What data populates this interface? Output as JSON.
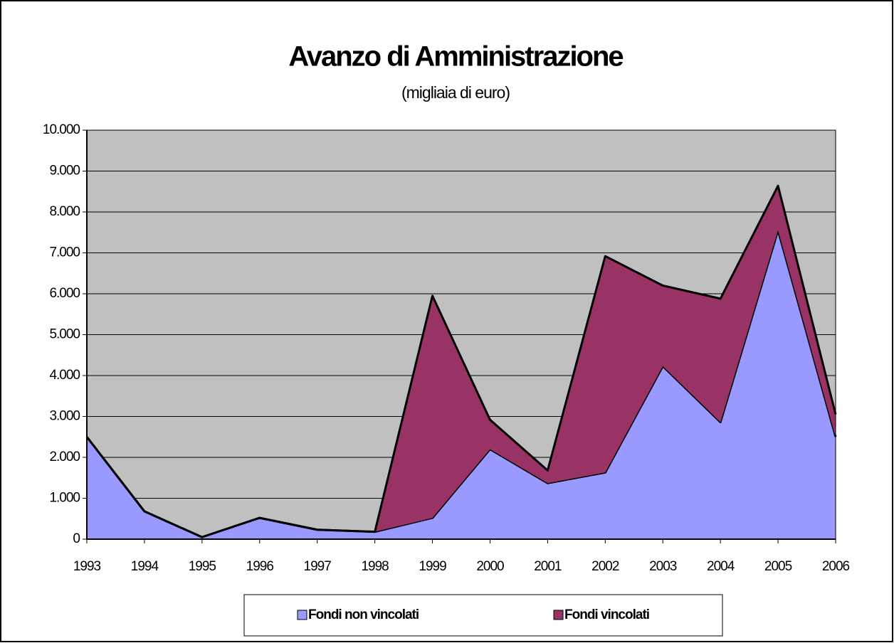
{
  "chart_data": {
    "type": "stacked_area",
    "title": "Avanzo di Amministrazione",
    "subtitle": "(migliaia di euro)",
    "categories": [
      "1993",
      "1994",
      "1995",
      "1996",
      "1997",
      "1998",
      "1999",
      "2000",
      "2001",
      "2002",
      "2003",
      "2004",
      "2005",
      "2006"
    ],
    "series": [
      {
        "name": "Fondi non vincolati",
        "color": "#9999ff",
        "values": [
          2500,
          680,
          50,
          520,
          230,
          180,
          520,
          2200,
          1370,
          1630,
          4230,
          2860,
          7550,
          2500
        ]
      },
      {
        "name": "Fondi vincolati",
        "color": "#993366",
        "values": [
          0,
          0,
          0,
          0,
          0,
          0,
          5430,
          720,
          310,
          5290,
          1970,
          3020,
          1090,
          550
        ]
      }
    ],
    "ylim": [
      0,
      10000
    ],
    "yticks": [
      0,
      {
        "value": 1000,
        "label": "1.000"
      },
      {
        "value": 2000,
        "label": "2.000"
      },
      {
        "value": 3000,
        "label": "3.000"
      },
      {
        "value": 4000,
        "label": "4.000"
      },
      {
        "value": 5000,
        "label": "5.000"
      },
      {
        "value": 6000,
        "label": "6.000"
      },
      {
        "value": 7000,
        "label": "7.000"
      },
      {
        "value": 8000,
        "label": "8.000"
      },
      {
        "value": 9000,
        "label": "9.000"
      },
      {
        "value": 10000,
        "label": "10.000"
      }
    ],
    "grid": true,
    "legend": "bottom",
    "plot_background": "#c0c0c0"
  }
}
